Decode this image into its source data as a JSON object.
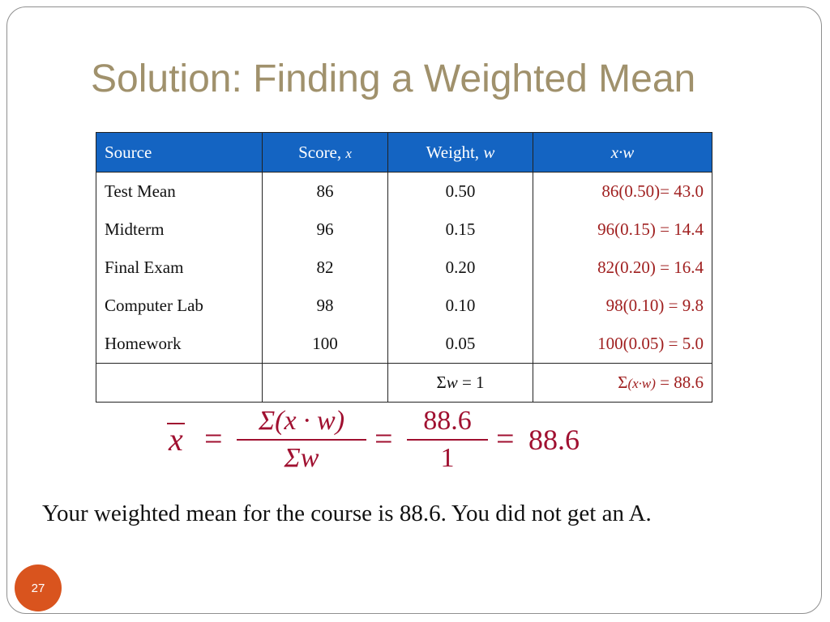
{
  "slide": {
    "title": "Solution: Finding a Weighted Mean",
    "page_number": "27"
  },
  "table": {
    "headers": {
      "source": "Source",
      "score_label": "Score, ",
      "score_var": "x",
      "weight_label": "Weight, ",
      "weight_var": "w",
      "product": "x·w"
    },
    "rows": [
      {
        "source": "Test Mean",
        "score": "86",
        "weight": "0.50",
        "product": "86(0.50)= 43.0"
      },
      {
        "source": "Midterm",
        "score": "96",
        "weight": "0.15",
        "product": "96(0.15) = 14.4"
      },
      {
        "source": "Final Exam",
        "score": "82",
        "weight": "0.20",
        "product": "82(0.20) = 16.4"
      },
      {
        "source": "Computer Lab",
        "score": "98",
        "weight": "0.10",
        "product": "98(0.10) = 9.8"
      },
      {
        "source": "Homework",
        "score": "100",
        "weight": "0.05",
        "product": "100(0.05) = 5.0"
      }
    ],
    "sum_row": {
      "weight_sigma": "Σ",
      "weight_var": "w",
      "weight_rest": " = 1",
      "product_sigma": "Σ",
      "product_var": "(x·w)",
      "product_rest": " = 88.6"
    }
  },
  "formula": {
    "lhs": "x",
    "eq": "=",
    "frac1_num": "Σ(x · w)",
    "frac1_den": "Σw",
    "frac2_num": "88.6",
    "frac2_den": "1",
    "result": "88.6"
  },
  "conclusion": "Your weighted mean for the course is 88.6. You did not get an A."
}
